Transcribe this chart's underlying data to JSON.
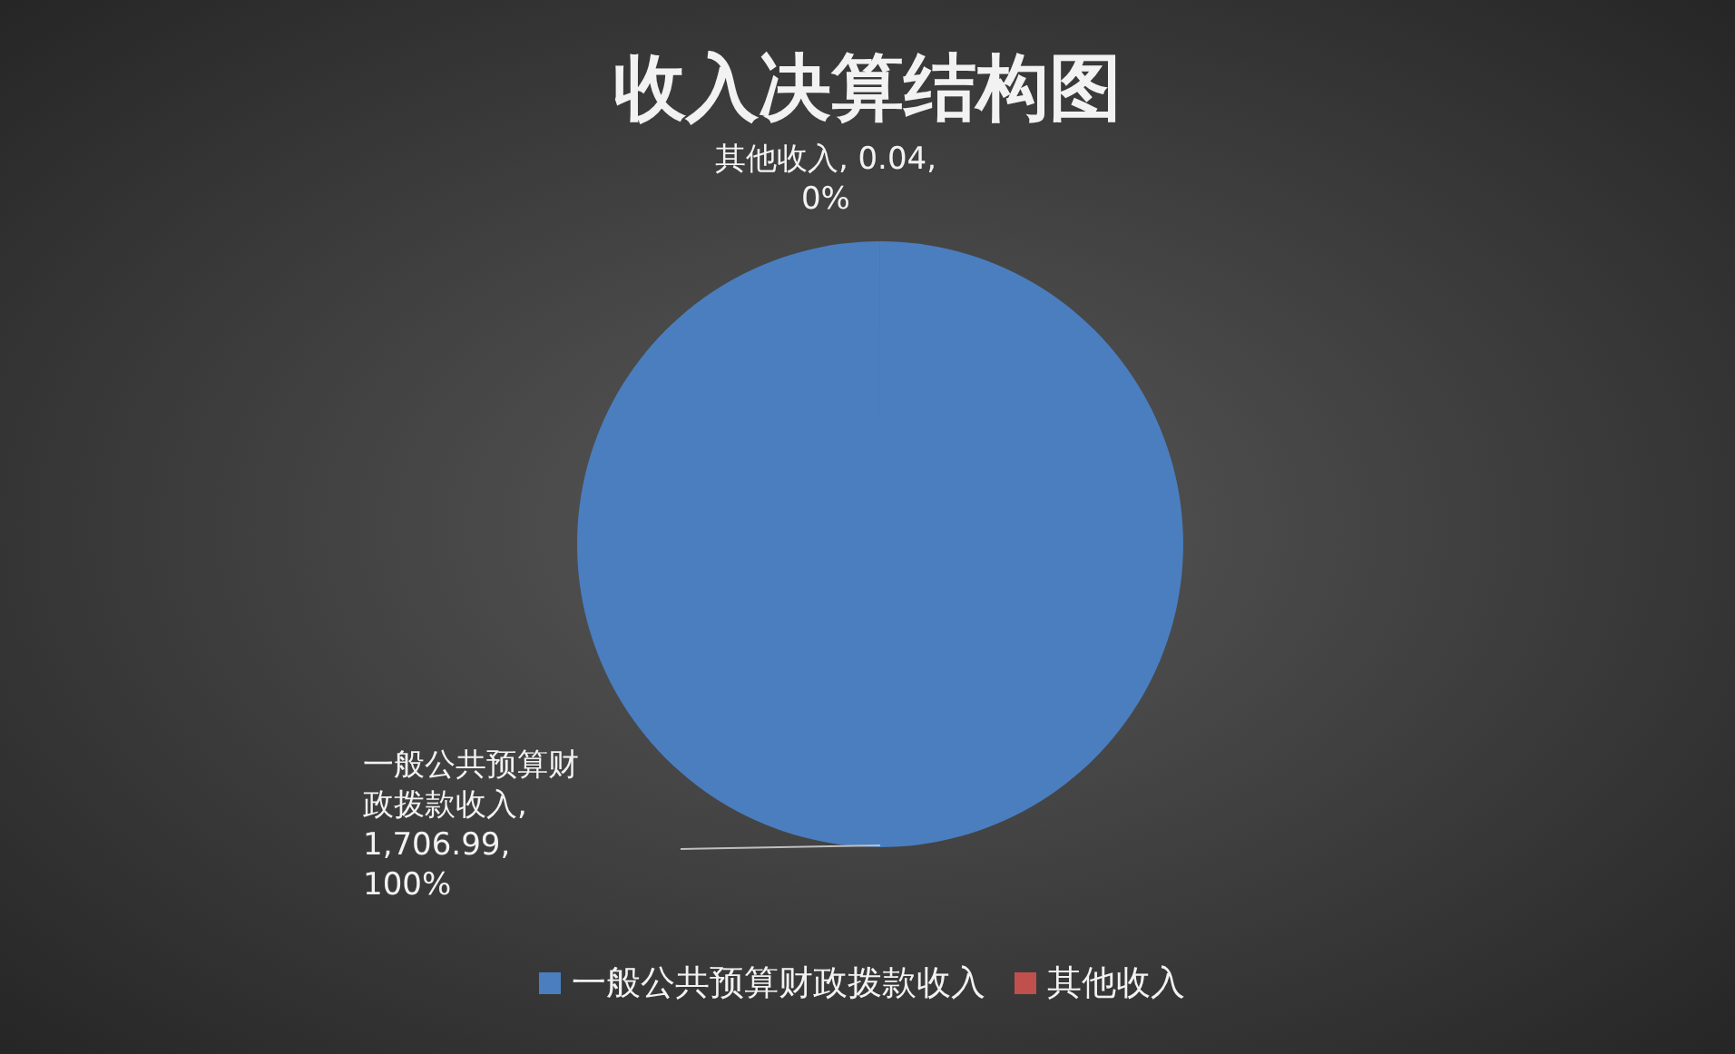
{
  "chart_data": {
    "type": "pie",
    "title": "收入决算结构图",
    "categories": [
      "一般公共预算财政拨款收入",
      "其他收入"
    ],
    "values": [
      1706.99,
      0.04
    ],
    "colors": [
      "#4a7ebf",
      "#c0504d"
    ],
    "value_labels": [
      "一般公共预算财政拨款收入, 1,706.99, 100%",
      "其他收入, 0.04, 0%"
    ],
    "legend": "bottom"
  }
}
